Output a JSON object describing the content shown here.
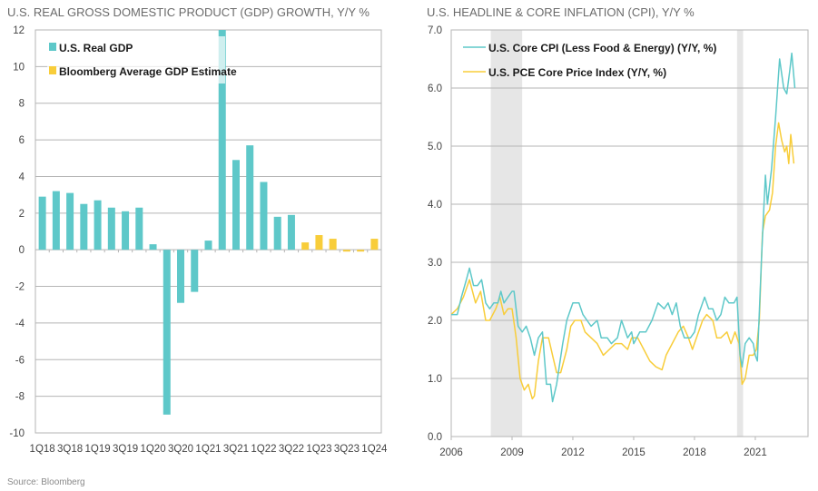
{
  "source": "Source: Bloomberg",
  "colors": {
    "teal": "#5ec8c9",
    "yellow": "#f8cd3a",
    "grid": "#b5b5b5",
    "shade": "#e6e6e6"
  },
  "chart_data": [
    {
      "type": "bar",
      "title": "U.S. REAL GROSS DOMESTIC PRODUCT (GDP) GROWTH, Y/Y %",
      "xlabel": "",
      "ylabel": "",
      "ylim": [
        -10,
        12
      ],
      "yticks": [
        "12",
        "10",
        "8",
        "6",
        "4",
        "2",
        "0",
        "-2",
        "-4",
        "-6",
        "-8",
        "-10"
      ],
      "ytick_values": [
        12,
        10,
        8,
        6,
        4,
        2,
        0,
        -2,
        -4,
        -6,
        -8,
        -10
      ],
      "categories": [
        "1Q18",
        "2Q18",
        "3Q18",
        "4Q18",
        "1Q19",
        "2Q19",
        "3Q19",
        "4Q19",
        "1Q20",
        "2Q20",
        "3Q20",
        "4Q20",
        "1Q21",
        "2Q21",
        "3Q21",
        "4Q21",
        "1Q22",
        "2Q22",
        "3Q22",
        "4Q22",
        "1Q23",
        "2Q23",
        "3Q23",
        "4Q23",
        "1Q24"
      ],
      "xtick_labels": [
        "1Q18",
        "3Q18",
        "1Q19",
        "3Q19",
        "1Q20",
        "3Q20",
        "1Q21",
        "3Q21",
        "1Q22",
        "3Q22",
        "1Q23",
        "3Q23",
        "1Q24"
      ],
      "legend": [
        "U.S. Real GDP",
        "Bloomberg Average GDP Estimate"
      ],
      "legend_position": "top-left",
      "grid": true,
      "series": [
        {
          "name": "U.S. Real GDP",
          "values": [
            2.9,
            3.2,
            3.1,
            2.5,
            2.7,
            2.3,
            2.1,
            2.3,
            0.3,
            -9.0,
            -2.9,
            -2.3,
            0.5,
            12.2,
            4.9,
            5.7,
            3.7,
            1.8,
            1.9,
            null,
            null,
            null,
            null,
            null,
            null
          ]
        },
        {
          "name": "Bloomberg Average GDP Estimate",
          "values": [
            null,
            null,
            null,
            null,
            null,
            null,
            null,
            null,
            null,
            null,
            null,
            null,
            null,
            null,
            null,
            null,
            null,
            null,
            null,
            0.4,
            0.8,
            0.6,
            -0.1,
            -0.1,
            0.6
          ]
        }
      ]
    },
    {
      "type": "line",
      "title": "U.S. HEADLINE & CORE INFLATION (CPI), Y/Y %",
      "xlabel": "",
      "ylabel": "",
      "xlim": [
        2006,
        2023.6
      ],
      "ylim": [
        0,
        7
      ],
      "xticks": [
        "2006",
        "2009",
        "2012",
        "2015",
        "2018",
        "2021"
      ],
      "xtick_values": [
        2006,
        2009,
        2012,
        2015,
        2018,
        2021
      ],
      "yticks": [
        "7.0",
        "6.0",
        "5.0",
        "4.0",
        "3.0",
        "2.0",
        "1.0",
        "0.0"
      ],
      "ytick_values": [
        7,
        6,
        5,
        4,
        3,
        2,
        1,
        0
      ],
      "legend": [
        "U.S. Core CPI (Less Food & Energy) (Y/Y, %)",
        "U.S. PCE Core Price Index (Y/Y, %)"
      ],
      "legend_position": "top-left",
      "grid": true,
      "recessions": [
        [
          2007.95,
          2009.5
        ],
        [
          2020.1,
          2020.4
        ]
      ],
      "series": [
        {
          "name": "U.S. Core CPI (Less Food & Energy) (Y/Y, %)",
          "points": [
            [
              2006.0,
              2.1
            ],
            [
              2006.3,
              2.1
            ],
            [
              2006.5,
              2.4
            ],
            [
              2006.75,
              2.7
            ],
            [
              2006.9,
              2.9
            ],
            [
              2007.1,
              2.6
            ],
            [
              2007.3,
              2.6
            ],
            [
              2007.5,
              2.7
            ],
            [
              2007.7,
              2.3
            ],
            [
              2007.9,
              2.2
            ],
            [
              2008.1,
              2.3
            ],
            [
              2008.3,
              2.3
            ],
            [
              2008.45,
              2.5
            ],
            [
              2008.6,
              2.3
            ],
            [
              2008.8,
              2.4
            ],
            [
              2009.0,
              2.5
            ],
            [
              2009.1,
              2.5
            ],
            [
              2009.3,
              1.9
            ],
            [
              2009.5,
              1.8
            ],
            [
              2009.7,
              1.9
            ],
            [
              2009.9,
              1.7
            ],
            [
              2010.1,
              1.4
            ],
            [
              2010.3,
              1.7
            ],
            [
              2010.5,
              1.8
            ],
            [
              2010.7,
              0.9
            ],
            [
              2010.9,
              0.9
            ],
            [
              2011.0,
              0.6
            ],
            [
              2011.2,
              0.9
            ],
            [
              2011.5,
              1.6
            ],
            [
              2011.7,
              2.0
            ],
            [
              2011.9,
              2.2
            ],
            [
              2012.0,
              2.3
            ],
            [
              2012.3,
              2.3
            ],
            [
              2012.5,
              2.1
            ],
            [
              2012.7,
              2.0
            ],
            [
              2012.9,
              1.9
            ],
            [
              2013.2,
              2.0
            ],
            [
              2013.4,
              1.7
            ],
            [
              2013.7,
              1.7
            ],
            [
              2013.9,
              1.6
            ],
            [
              2014.2,
              1.7
            ],
            [
              2014.4,
              2.0
            ],
            [
              2014.7,
              1.7
            ],
            [
              2014.9,
              1.8
            ],
            [
              2015.0,
              1.6
            ],
            [
              2015.3,
              1.8
            ],
            [
              2015.6,
              1.8
            ],
            [
              2015.9,
              2.0
            ],
            [
              2016.2,
              2.3
            ],
            [
              2016.5,
              2.2
            ],
            [
              2016.7,
              2.3
            ],
            [
              2016.9,
              2.1
            ],
            [
              2017.1,
              2.3
            ],
            [
              2017.3,
              1.9
            ],
            [
              2017.5,
              1.7
            ],
            [
              2017.8,
              1.7
            ],
            [
              2018.0,
              1.8
            ],
            [
              2018.2,
              2.1
            ],
            [
              2018.5,
              2.4
            ],
            [
              2018.7,
              2.2
            ],
            [
              2018.9,
              2.2
            ],
            [
              2019.1,
              2.0
            ],
            [
              2019.3,
              2.1
            ],
            [
              2019.5,
              2.4
            ],
            [
              2019.7,
              2.3
            ],
            [
              2019.95,
              2.3
            ],
            [
              2020.1,
              2.4
            ],
            [
              2020.25,
              1.4
            ],
            [
              2020.35,
              1.2
            ],
            [
              2020.5,
              1.6
            ],
            [
              2020.7,
              1.7
            ],
            [
              2020.9,
              1.6
            ],
            [
              2021.0,
              1.4
            ],
            [
              2021.1,
              1.3
            ],
            [
              2021.3,
              3.0
            ],
            [
              2021.4,
              3.8
            ],
            [
              2021.5,
              4.5
            ],
            [
              2021.6,
              4.0
            ],
            [
              2021.8,
              4.6
            ],
            [
              2022.0,
              5.5
            ],
            [
              2022.2,
              6.5
            ],
            [
              2022.4,
              6.0
            ],
            [
              2022.55,
              5.9
            ],
            [
              2022.7,
              6.3
            ],
            [
              2022.8,
              6.6
            ],
            [
              2022.95,
              6.0
            ]
          ]
        },
        {
          "name": "U.S. PCE Core Price Index (Y/Y, %)",
          "points": [
            [
              2006.0,
              2.1
            ],
            [
              2006.3,
              2.2
            ],
            [
              2006.6,
              2.4
            ],
            [
              2006.9,
              2.7
            ],
            [
              2007.2,
              2.3
            ],
            [
              2007.45,
              2.5
            ],
            [
              2007.7,
              2.0
            ],
            [
              2007.9,
              2.0
            ],
            [
              2008.2,
              2.2
            ],
            [
              2008.4,
              2.4
            ],
            [
              2008.6,
              2.1
            ],
            [
              2008.8,
              2.2
            ],
            [
              2009.0,
              2.2
            ],
            [
              2009.2,
              1.7
            ],
            [
              2009.4,
              1.0
            ],
            [
              2009.6,
              0.8
            ],
            [
              2009.8,
              0.9
            ],
            [
              2010.0,
              0.65
            ],
            [
              2010.1,
              0.7
            ],
            [
              2010.3,
              1.3
            ],
            [
              2010.5,
              1.7
            ],
            [
              2010.8,
              1.7
            ],
            [
              2011.0,
              1.4
            ],
            [
              2011.2,
              1.1
            ],
            [
              2011.4,
              1.1
            ],
            [
              2011.7,
              1.5
            ],
            [
              2011.9,
              1.9
            ],
            [
              2012.1,
              2.0
            ],
            [
              2012.4,
              2.0
            ],
            [
              2012.6,
              1.8
            ],
            [
              2012.9,
              1.7
            ],
            [
              2013.2,
              1.6
            ],
            [
              2013.5,
              1.4
            ],
            [
              2013.8,
              1.5
            ],
            [
              2014.1,
              1.6
            ],
            [
              2014.4,
              1.6
            ],
            [
              2014.7,
              1.5
            ],
            [
              2014.9,
              1.7
            ],
            [
              2015.2,
              1.7
            ],
            [
              2015.5,
              1.5
            ],
            [
              2015.8,
              1.3
            ],
            [
              2016.1,
              1.2
            ],
            [
              2016.4,
              1.15
            ],
            [
              2016.6,
              1.4
            ],
            [
              2016.9,
              1.6
            ],
            [
              2017.2,
              1.8
            ],
            [
              2017.45,
              1.9
            ],
            [
              2017.7,
              1.7
            ],
            [
              2017.9,
              1.5
            ],
            [
              2018.2,
              1.8
            ],
            [
              2018.4,
              2.0
            ],
            [
              2018.6,
              2.1
            ],
            [
              2018.9,
              2.0
            ],
            [
              2019.1,
              1.7
            ],
            [
              2019.3,
              1.7
            ],
            [
              2019.6,
              1.8
            ],
            [
              2019.8,
              1.6
            ],
            [
              2020.0,
              1.8
            ],
            [
              2020.2,
              1.6
            ],
            [
              2020.35,
              0.9
            ],
            [
              2020.5,
              1.0
            ],
            [
              2020.7,
              1.4
            ],
            [
              2020.9,
              1.4
            ],
            [
              2021.05,
              1.5
            ],
            [
              2021.2,
              2.0
            ],
            [
              2021.35,
              3.5
            ],
            [
              2021.5,
              3.8
            ],
            [
              2021.7,
              3.9
            ],
            [
              2021.85,
              4.2
            ],
            [
              2022.0,
              5.0
            ],
            [
              2022.15,
              5.4
            ],
            [
              2022.3,
              5.1
            ],
            [
              2022.45,
              4.9
            ],
            [
              2022.55,
              5.0
            ],
            [
              2022.65,
              4.7
            ],
            [
              2022.75,
              5.2
            ],
            [
              2022.9,
              4.7
            ]
          ]
        }
      ]
    }
  ]
}
